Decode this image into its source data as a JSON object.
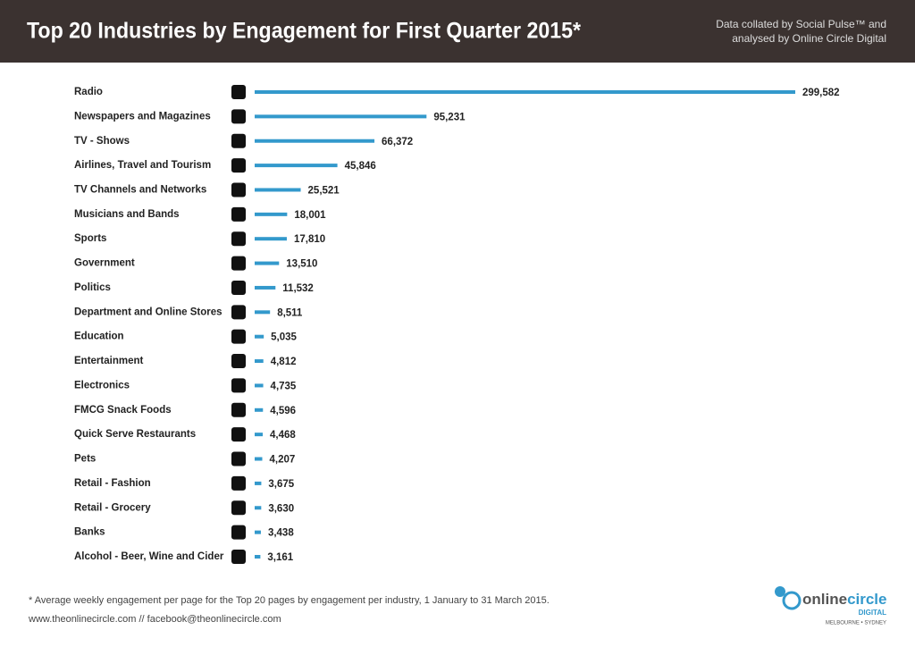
{
  "chart_data": {
    "type": "hbar",
    "title": "Top 20 Industries by Engagement for First Quarter 2015*",
    "note": [
      "Data collated by Social Pulse™ and",
      "analysed by Online Circle Digital"
    ],
    "categories": [
      "Radio",
      "Newspapers and Magazines",
      "TV - Shows",
      "Airlines, Travel and Tourism",
      "TV Channels and Networks",
      "Musicians and Bands",
      "Sports",
      "Government",
      "Politics",
      "Department and Online Stores",
      "Education",
      "Entertainment",
      "Electronics",
      "FMCG Snack Foods",
      "Quick Serve Restaurants",
      "Pets",
      "Retail - Fashion",
      "Retail - Grocery",
      "Banks",
      "Alcohol - Beer, Wine and Cider"
    ],
    "values": [
      299582,
      95231,
      66372,
      45846,
      25521,
      18001,
      17810,
      13510,
      11532,
      8511,
      5035,
      4812,
      4735,
      4596,
      4468,
      4207,
      3675,
      3630,
      3438,
      3161
    ],
    "value_labels": [
      "299,582",
      "95,231",
      "66,372",
      "45,846",
      "25,521",
      "18,001",
      "17,810",
      "13,510",
      "11,532",
      "8,511",
      "5,035",
      "4,812",
      "4,735",
      "4,596",
      "4,468",
      "4,207",
      "3,675",
      "3,630",
      "3,438",
      "3,161"
    ],
    "color": "#3399cc",
    "footnote": "* Average weekly engagement per page for the Top 20 pages by engagement per industry, 1 January to 31 March 2015.",
    "website": "www.theonlinecircle.com // facebook@theonlinecircle.com",
    "logo": {
      "part1": "online",
      "part2": "circle",
      "sub": "DIGITAL",
      "cities": "MELBOURNE • SYDNEY"
    }
  }
}
